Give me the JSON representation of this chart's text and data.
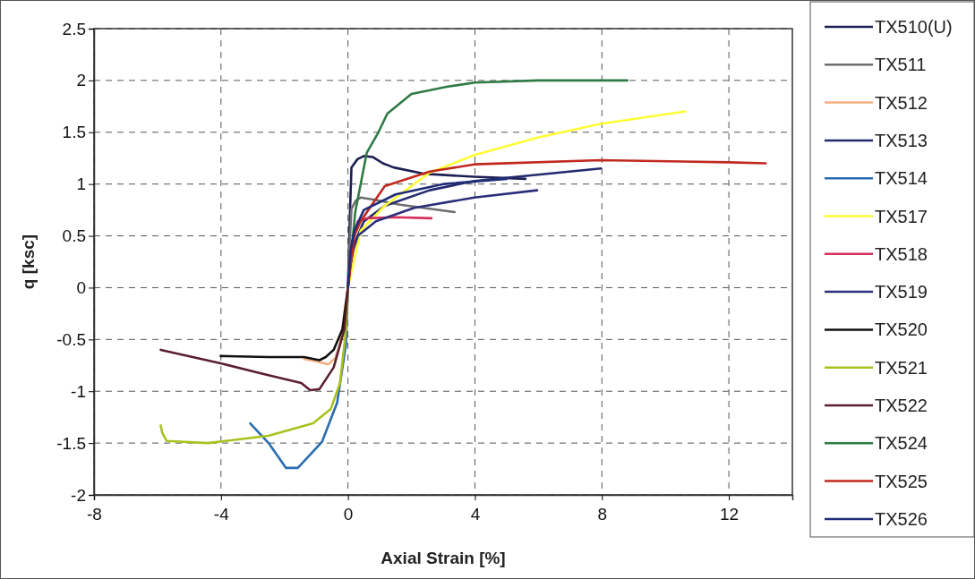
{
  "chart_data": {
    "type": "line",
    "xlabel": "Axial Strain [%]",
    "ylabel": "q [ksc]",
    "xlim": [
      -8,
      14
    ],
    "xticks": [
      -8,
      -4,
      0,
      4,
      8,
      12
    ],
    "ylim": [
      -2,
      2.5
    ],
    "yticks": [
      -2,
      -1.5,
      -1,
      -0.5,
      0,
      0.5,
      1,
      1.5,
      2,
      2.5
    ],
    "grid": true,
    "legend": "right",
    "marker": "none",
    "line_style": "solid",
    "series": [
      {
        "name": "TX510(U)",
        "color": "#1c1f52",
        "x": [
          0,
          0.05,
          0.11,
          0.3,
          0.5,
          0.79,
          1.1,
          1.44,
          2.37,
          3.98,
          5.59
        ],
        "values": [
          0,
          0.6,
          1.16,
          1.24,
          1.27,
          1.26,
          1.2,
          1.16,
          1.1,
          1.07,
          1.05
        ]
      },
      {
        "name": "TX511",
        "color": "#6e6e6e",
        "x": [
          0,
          0.05,
          0.11,
          0.25,
          0.4,
          0.8,
          1.64,
          3.36
        ],
        "values": [
          0,
          0.4,
          0.76,
          0.84,
          0.87,
          0.85,
          0.8,
          0.73
        ]
      },
      {
        "name": "TX512",
        "color": "#f4b183",
        "x": [
          0,
          -0.25,
          -0.4,
          -0.62,
          -1.0,
          -1.38
        ],
        "values": [
          0,
          -0.54,
          -0.68,
          -0.74,
          -0.71,
          -0.69
        ]
      },
      {
        "name": "TX513",
        "color": "#232a6e",
        "x": [
          0,
          0.1,
          0.2,
          0.5,
          1.16,
          2.57,
          3.98,
          7.97
        ],
        "values": [
          0,
          0.25,
          0.42,
          0.64,
          0.79,
          0.94,
          1.03,
          1.15
        ]
      },
      {
        "name": "TX514",
        "color": "#2a6cb0",
        "x": [
          -3.08,
          -2.5,
          -1.95,
          -1.58,
          -0.82,
          -0.34,
          -0.06,
          0
        ],
        "values": [
          -1.31,
          -1.5,
          -1.74,
          -1.74,
          -1.49,
          -1.11,
          -0.54,
          0
        ]
      },
      {
        "name": "TX517",
        "color": "#ffff33",
        "x": [
          0,
          0.4,
          1.16,
          2.57,
          3.98,
          6,
          7.94,
          10.62
        ],
        "values": [
          0,
          0.55,
          0.79,
          1.11,
          1.28,
          1.45,
          1.58,
          1.7
        ]
      },
      {
        "name": "TX518",
        "color": "#d6305a",
        "x": [
          0,
          0.1,
          0.31,
          0.59,
          1.5,
          2.63
        ],
        "values": [
          0,
          0.4,
          0.64,
          0.67,
          0.68,
          0.67
        ]
      },
      {
        "name": "TX519",
        "color": "#2b2f7a",
        "x": [
          0,
          0.1,
          0.31,
          0.88,
          2.09,
          3.98,
          5.96
        ],
        "values": [
          0,
          0.3,
          0.5,
          0.64,
          0.77,
          0.87,
          0.94
        ]
      },
      {
        "name": "TX520",
        "color": "#111111",
        "x": [
          -4.01,
          -2.5,
          -1.38,
          -0.9,
          -0.7,
          -0.45,
          -0.17,
          0
        ],
        "values": [
          -0.66,
          -0.67,
          -0.67,
          -0.7,
          -0.67,
          -0.6,
          -0.4,
          0
        ]
      },
      {
        "name": "TX521",
        "color": "#a8c21e",
        "x": [
          -5.9,
          -5.85,
          -5.71,
          -4.41,
          -2.51,
          -1.1,
          -0.54,
          -0.25,
          -0.06,
          0
        ],
        "values": [
          -1.33,
          -1.4,
          -1.48,
          -1.5,
          -1.43,
          -1.31,
          -1.17,
          -0.92,
          -0.4,
          0
        ]
      },
      {
        "name": "TX522",
        "color": "#5a1f2e",
        "x": [
          -5.9,
          -4.01,
          -2.71,
          -1.47,
          -1.19,
          -0.9,
          -0.45,
          -0.11,
          0
        ],
        "values": [
          -0.6,
          -0.73,
          -0.83,
          -0.92,
          -0.99,
          -0.98,
          -0.77,
          -0.4,
          0
        ]
      },
      {
        "name": "TX524",
        "color": "#2f7a45",
        "x": [
          0,
          0.23,
          0.59,
          0.96,
          1.24,
          2,
          3.14,
          4,
          6,
          8.8
        ],
        "values": [
          0,
          0.73,
          1.3,
          1.5,
          1.68,
          1.87,
          1.94,
          1.98,
          2,
          2
        ]
      },
      {
        "name": "TX525",
        "color": "#c0281e",
        "x": [
          0,
          0.2,
          0.4,
          1.16,
          2.57,
          3.98,
          7.94,
          12,
          13.16
        ],
        "values": [
          0,
          0.5,
          0.64,
          0.98,
          1.12,
          1.19,
          1.23,
          1.21,
          1.2
        ]
      },
      {
        "name": "TX526",
        "color": "#1f2d78",
        "x": [
          0,
          0.08,
          0.2,
          0.5,
          1.5,
          3,
          5
        ],
        "values": [
          0,
          0.35,
          0.55,
          0.75,
          0.9,
          1.0,
          1.05
        ]
      }
    ]
  }
}
